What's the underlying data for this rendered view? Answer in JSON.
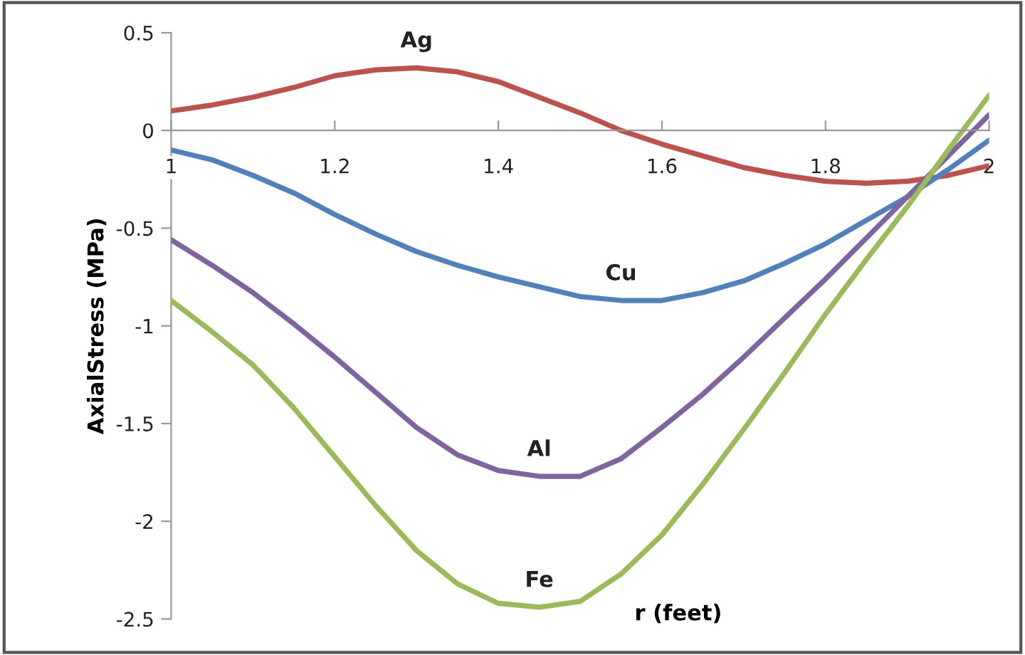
{
  "chart_data": {
    "type": "line",
    "xlabel": "r (feet)",
    "ylabel": "AxialStress (MPa)",
    "x": [
      1.0,
      1.05,
      1.1,
      1.15,
      1.2,
      1.25,
      1.3,
      1.35,
      1.4,
      1.45,
      1.5,
      1.55,
      1.6,
      1.65,
      1.7,
      1.75,
      1.8,
      1.85,
      1.9,
      1.95,
      2.0
    ],
    "series": [
      {
        "name": "Ag",
        "color": "#c0504d",
        "values": [
          0.1,
          0.13,
          0.17,
          0.22,
          0.28,
          0.31,
          0.32,
          0.3,
          0.25,
          0.17,
          0.09,
          0.0,
          -0.07,
          -0.13,
          -0.19,
          -0.23,
          -0.26,
          -0.27,
          -0.26,
          -0.23,
          -0.18
        ]
      },
      {
        "name": "Cu",
        "color": "#4f81bd",
        "values": [
          -0.1,
          -0.15,
          -0.23,
          -0.32,
          -0.43,
          -0.53,
          -0.62,
          -0.69,
          -0.75,
          -0.8,
          -0.85,
          -0.87,
          -0.87,
          -0.83,
          -0.77,
          -0.68,
          -0.58,
          -0.46,
          -0.34,
          -0.2,
          -0.05
        ]
      },
      {
        "name": "Al",
        "color": "#8064a2",
        "values": [
          -0.56,
          -0.69,
          -0.83,
          -0.99,
          -1.16,
          -1.34,
          -1.52,
          -1.66,
          -1.74,
          -1.77,
          -1.77,
          -1.68,
          -1.52,
          -1.35,
          -1.16,
          -0.96,
          -0.76,
          -0.55,
          -0.34,
          -0.13,
          0.08
        ]
      },
      {
        "name": "Fe",
        "color": "#9bbb59",
        "values": [
          -0.87,
          -1.03,
          -1.2,
          -1.42,
          -1.67,
          -1.92,
          -2.15,
          -2.32,
          -2.42,
          -2.44,
          -2.41,
          -2.27,
          -2.07,
          -1.81,
          -1.53,
          -1.24,
          -0.94,
          -0.66,
          -0.39,
          -0.1,
          0.18
        ]
      }
    ],
    "xlim": [
      1,
      2
    ],
    "xticks": [
      1,
      1.2,
      1.4,
      1.6,
      1.8,
      2
    ],
    "ylim": [
      -2.5,
      0.5
    ],
    "yticks": [
      -2.5,
      -2,
      -1.5,
      -1,
      -0.5,
      0,
      0.5
    ],
    "grid": false,
    "legend": false,
    "marker": "none",
    "line_style": "solid"
  }
}
